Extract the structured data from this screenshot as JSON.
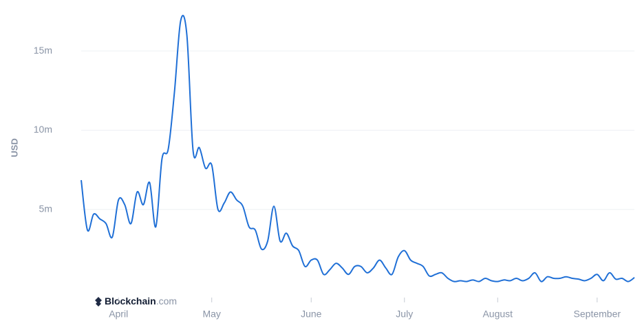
{
  "chart_data": {
    "type": "line",
    "y_label": "USD",
    "brand": {
      "name": "Blockchain",
      "suffix": ".com"
    },
    "categories": [
      null,
      null,
      null,
      null,
      null,
      null,
      "April",
      null,
      null,
      null,
      null,
      null,
      null,
      null,
      null,
      null,
      null,
      null,
      null,
      null,
      null,
      "May",
      null,
      null,
      null,
      null,
      null,
      null,
      null,
      null,
      null,
      null,
      null,
      null,
      null,
      null,
      null,
      "June",
      null,
      null,
      null,
      null,
      null,
      null,
      null,
      null,
      null,
      null,
      null,
      null,
      null,
      null,
      "July",
      null,
      null,
      null,
      null,
      null,
      null,
      null,
      null,
      null,
      null,
      null,
      null,
      null,
      null,
      "August",
      null,
      null,
      null,
      null,
      null,
      null,
      null,
      null,
      null,
      null,
      null,
      null,
      null,
      null,
      null,
      "September",
      null,
      null,
      null,
      null,
      null,
      null
    ],
    "series": [
      {
        "name": "USD",
        "color": "#1f6fd6",
        "values": [
          6.85,
          3.7,
          4.7,
          4.4,
          4.1,
          3.25,
          5.6,
          5.3,
          4.1,
          6.1,
          5.3,
          6.7,
          3.9,
          8.2,
          8.8,
          12.4,
          16.9,
          16.0,
          8.7,
          8.9,
          7.6,
          7.8,
          5.0,
          5.4,
          6.1,
          5.6,
          5.2,
          3.9,
          3.7,
          2.5,
          3.0,
          5.2,
          3.0,
          3.5,
          2.7,
          2.4,
          1.4,
          1.8,
          1.8,
          0.9,
          1.2,
          1.6,
          1.3,
          0.9,
          1.4,
          1.4,
          1.0,
          1.3,
          1.8,
          1.3,
          0.9,
          2.0,
          2.4,
          1.8,
          1.6,
          1.4,
          0.8,
          0.9,
          1.0,
          0.65,
          0.45,
          0.5,
          0.45,
          0.55,
          0.45,
          0.65,
          0.5,
          0.45,
          0.55,
          0.5,
          0.65,
          0.5,
          0.65,
          1.0,
          0.45,
          0.75,
          0.65,
          0.65,
          0.75,
          0.65,
          0.6,
          0.5,
          0.65,
          0.9,
          0.5,
          1.0,
          0.6,
          0.65,
          0.45,
          0.7
        ]
      }
    ],
    "ylim": [
      0,
      18
    ],
    "yticks": [
      {
        "value": 5,
        "label": "5m"
      },
      {
        "value": 10,
        "label": "10m"
      },
      {
        "value": 15,
        "label": "15m"
      }
    ],
    "grid": true
  }
}
